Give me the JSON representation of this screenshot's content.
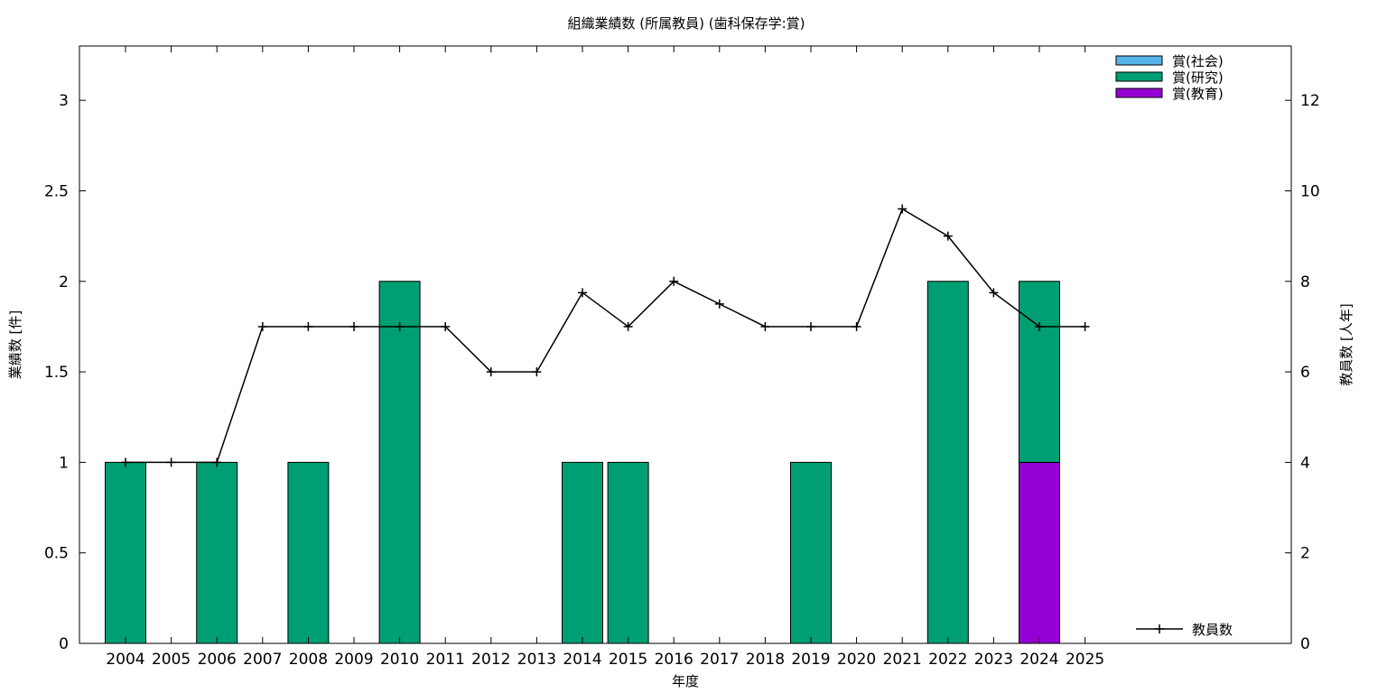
{
  "chart_data": {
    "type": "bar",
    "title": "組織業績数 (所属教員) (歯科保存学:賞)",
    "xlabel": "年度",
    "ylabel_left": "業績数 [件]",
    "ylabel_right": "教員数 [人年]",
    "categories": [
      "2004",
      "2005",
      "2006",
      "2007",
      "2008",
      "2009",
      "2010",
      "2011",
      "2012",
      "2013",
      "2014",
      "2015",
      "2016",
      "2017",
      "2018",
      "2019",
      "2020",
      "2021",
      "2022",
      "2023",
      "2024",
      "2025"
    ],
    "y_left_ticks": [
      "0",
      "0.5",
      "1",
      "1.5",
      "2",
      "2.5",
      "3"
    ],
    "y_right_ticks": [
      "0",
      "2",
      "4",
      "6",
      "8",
      "10",
      "12"
    ],
    "ylim_left": [
      0,
      3.3
    ],
    "ylim_right": [
      0,
      13.2
    ],
    "stacked": true,
    "legend_position": "top-right",
    "series": [
      {
        "name": "賞(社会)",
        "color": "#56b4e9",
        "values": [
          0,
          0,
          0,
          0,
          0,
          0,
          0,
          0,
          0,
          0,
          0,
          0,
          0,
          0,
          0,
          0,
          0,
          0,
          0,
          0,
          0,
          0
        ]
      },
      {
        "name": "賞(研究)",
        "color": "#009e73",
        "values": [
          1,
          0,
          1,
          0,
          1,
          0,
          2,
          0,
          0,
          0,
          1,
          1,
          0,
          0,
          0,
          1,
          0,
          0,
          2,
          0,
          1,
          0
        ]
      },
      {
        "name": "賞(教育)",
        "color": "#9400d3",
        "values": [
          0,
          0,
          0,
          0,
          0,
          0,
          0,
          0,
          0,
          0,
          0,
          0,
          0,
          0,
          0,
          0,
          0,
          0,
          0,
          0,
          1,
          0
        ]
      }
    ],
    "line_series": {
      "name": "教員数",
      "color": "#000000",
      "legend_position": "bottom-right",
      "values": [
        4,
        4,
        4,
        7,
        7,
        7,
        7,
        7,
        6,
        6,
        7.75,
        7,
        8,
        7.5,
        7,
        7,
        7,
        9.6,
        9,
        7.75,
        7,
        7
      ]
    }
  }
}
